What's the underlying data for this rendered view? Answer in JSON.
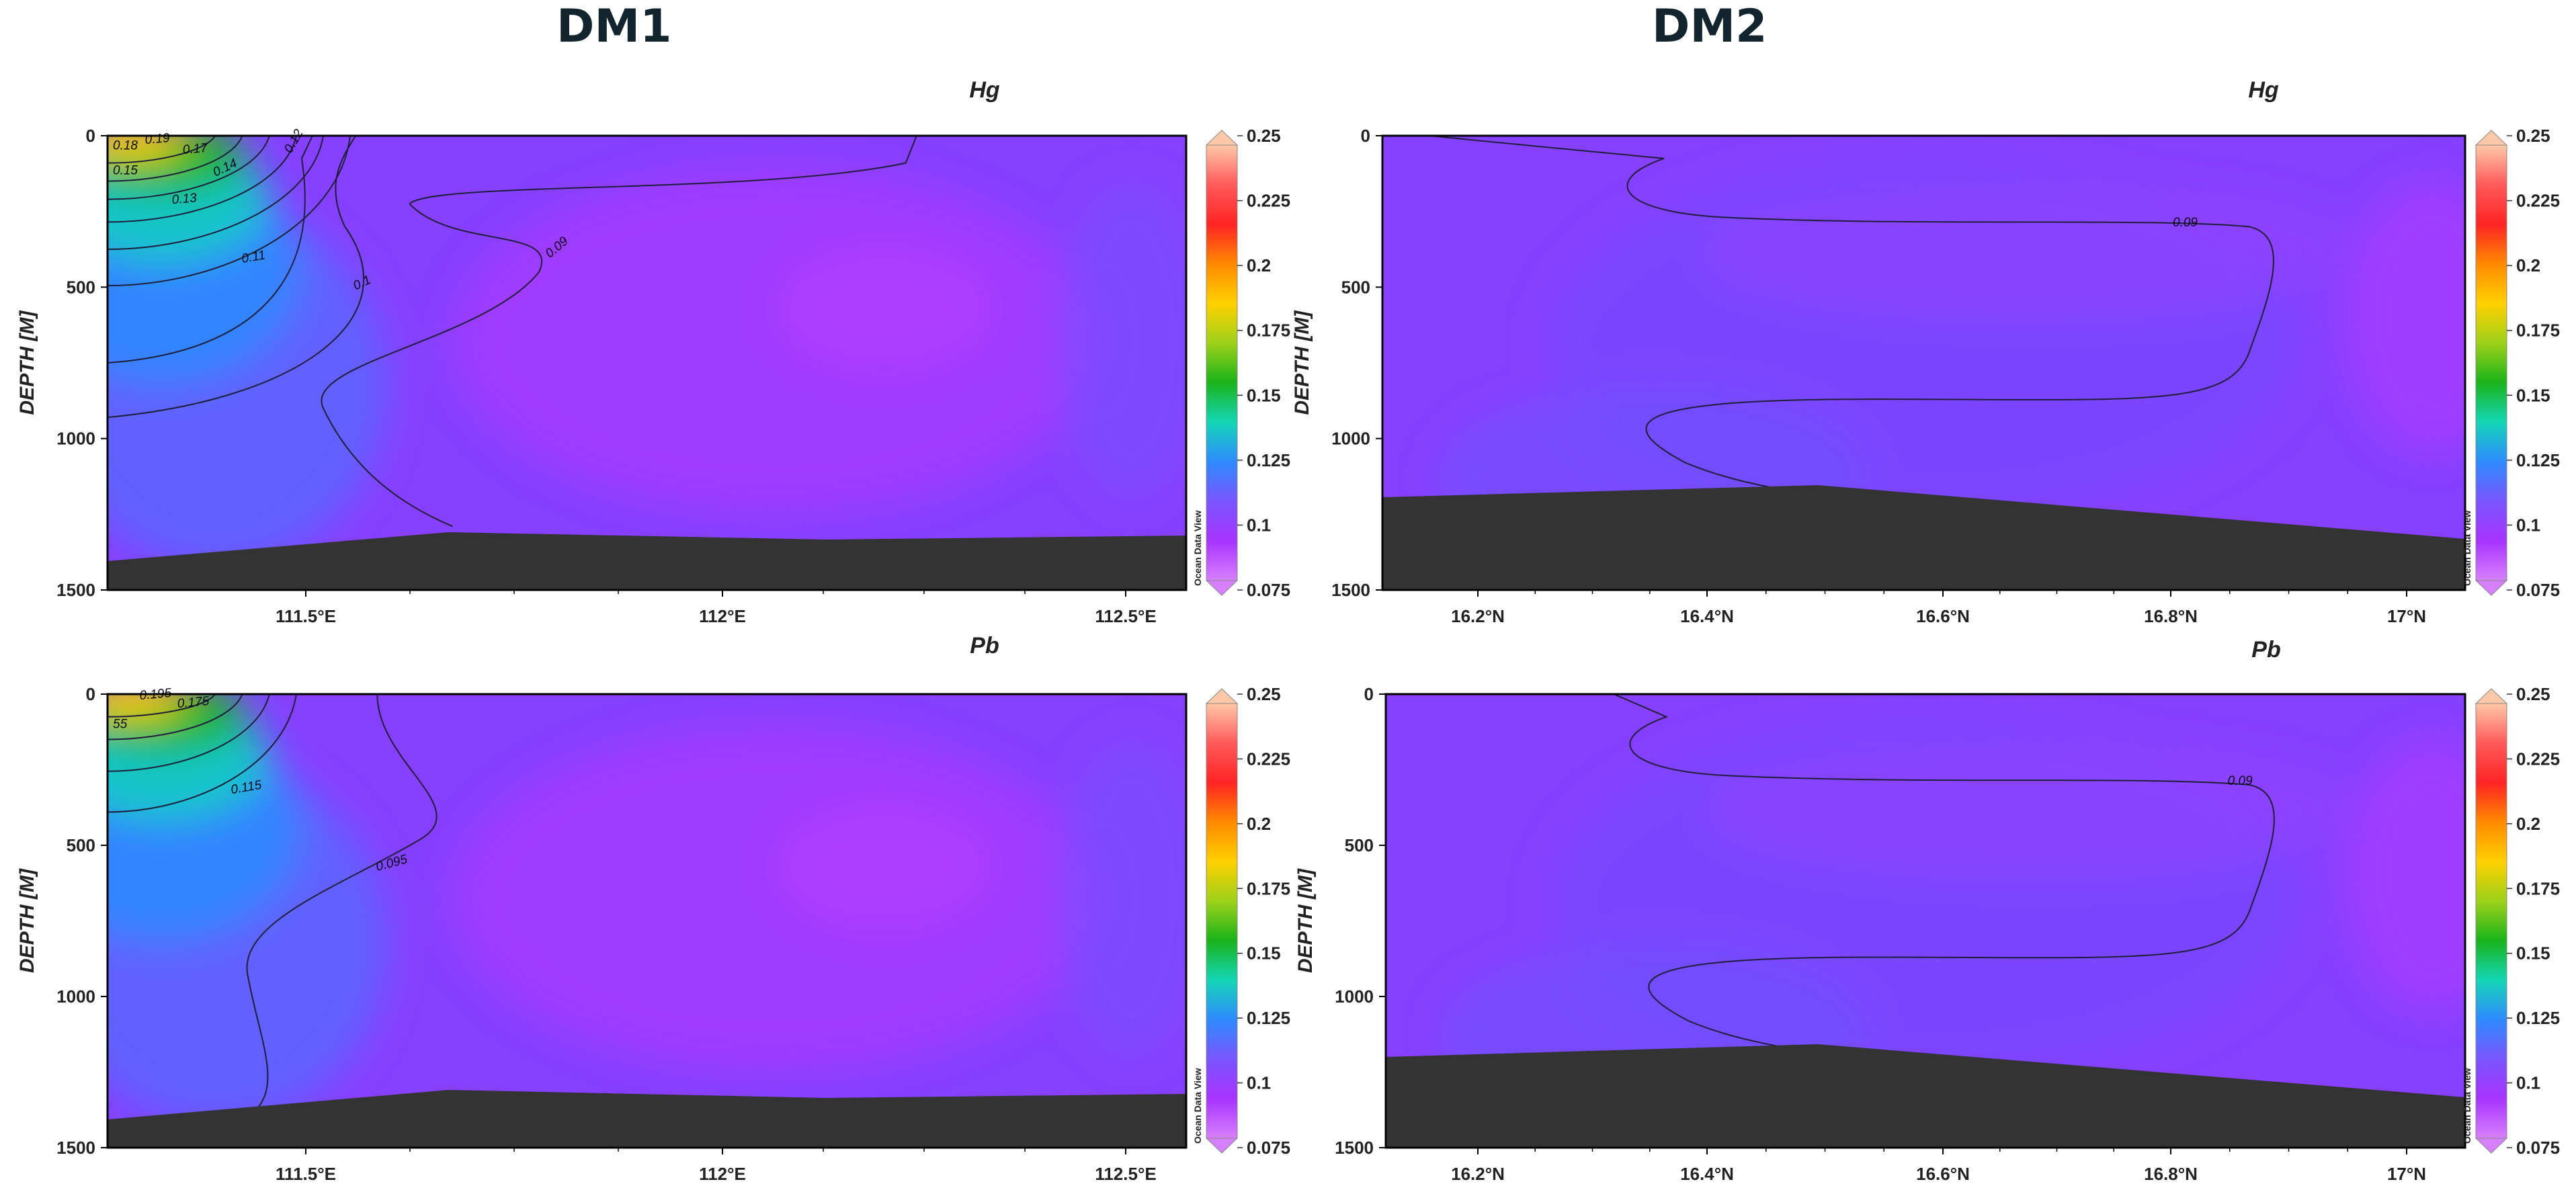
{
  "sections": {
    "dm1": "DM1",
    "dm2": "DM2"
  },
  "colorbar": {
    "ticks": [
      "0.25",
      "0.225",
      "0.2",
      "0.175",
      "0.15",
      "0.125",
      "0.1",
      "0.075"
    ],
    "watermark": "Ocean Data View",
    "colors": [
      "#d680ff",
      "#a833ff",
      "#7a55ff",
      "#2e8bff",
      "#14d6b6",
      "#1ab31a",
      "#9dd11a",
      "#ffd000",
      "#ff8a00",
      "#ff2424",
      "#ff5a5a",
      "#ffc8a8"
    ]
  },
  "seabed_color": "#333333",
  "chart_data": [
    {
      "type": "heatmap",
      "section": "DM1",
      "title": "Hg",
      "ylabel": "DEPTH [M]",
      "y_ticks": [
        "0",
        "500",
        "1000",
        "1500"
      ],
      "x_ticks": [
        "111.5°E",
        "112°E",
        "112.5°E"
      ],
      "ylim": [
        1500,
        0
      ],
      "color_range": [
        0.075,
        0.25
      ],
      "contour_labels": [
        "0.19",
        "0.18",
        "0.17",
        "0.15",
        "0.14",
        "0.13",
        "0.12",
        "0.11",
        "0.1",
        "0.09"
      ]
    },
    {
      "type": "heatmap",
      "section": "DM2",
      "title": "Hg",
      "ylabel": "DEPTH [M]",
      "y_ticks": [
        "0",
        "500",
        "1000",
        "1500"
      ],
      "x_ticks": [
        "16.2°N",
        "16.4°N",
        "16.6°N",
        "16.8°N",
        "17°N"
      ],
      "ylim": [
        1500,
        0
      ],
      "color_range": [
        0.075,
        0.25
      ],
      "contour_labels": [
        "0.09"
      ]
    },
    {
      "type": "heatmap",
      "section": "DM1",
      "title": "Pb",
      "ylabel": "DEPTH [M]",
      "y_ticks": [
        "0",
        "500",
        "1000",
        "1500"
      ],
      "x_ticks": [
        "111.5°E",
        "112°E",
        "112.5°E"
      ],
      "ylim": [
        1500,
        0
      ],
      "color_range": [
        0.075,
        0.25
      ],
      "contour_labels": [
        "0.195",
        "0.175",
        "55",
        "0.115",
        "0.095"
      ]
    },
    {
      "type": "heatmap",
      "section": "DM2",
      "title": "Pb",
      "ylabel": "DEPTH [M]",
      "y_ticks": [
        "0",
        "500",
        "1000",
        "1500"
      ],
      "x_ticks": [
        "16.2°N",
        "16.4°N",
        "16.6°N",
        "16.8°N",
        "17°N"
      ],
      "ylim": [
        1500,
        0
      ],
      "color_range": [
        0.075,
        0.25
      ],
      "contour_labels": [
        "0.09"
      ]
    }
  ]
}
